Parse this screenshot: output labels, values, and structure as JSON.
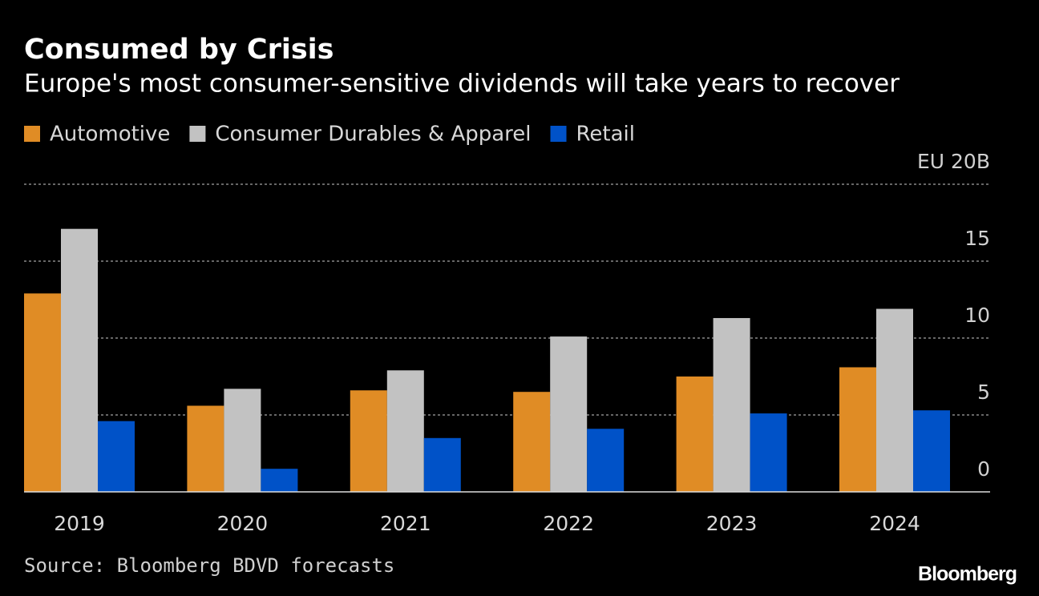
{
  "chart_data": {
    "type": "bar",
    "title": "Consumed by Crisis",
    "subtitle": "Europe's most consumer-sensitive dividends will take years to recover",
    "categories": [
      "2019",
      "2020",
      "2021",
      "2022",
      "2023",
      "2024"
    ],
    "series": [
      {
        "name": "Automotive",
        "color": "#e08c25",
        "values": [
          12.9,
          5.6,
          6.6,
          6.5,
          7.5,
          8.1
        ]
      },
      {
        "name": "Consumer Durables & Apparel",
        "color": "#c2c2c2",
        "values": [
          17.1,
          6.7,
          7.9,
          10.1,
          11.3,
          11.9
        ]
      },
      {
        "name": "Retail",
        "color": "#0052c8",
        "values": [
          4.6,
          1.5,
          3.5,
          4.1,
          5.1,
          5.3
        ]
      }
    ],
    "ylim": [
      0,
      20
    ],
    "yticks": [
      0,
      5,
      10,
      15,
      {
        "value": 20,
        "label": "EU 20B"
      }
    ],
    "grid": true,
    "source": "Source: Bloomberg BDVD forecasts",
    "logo": "Bloomberg"
  }
}
